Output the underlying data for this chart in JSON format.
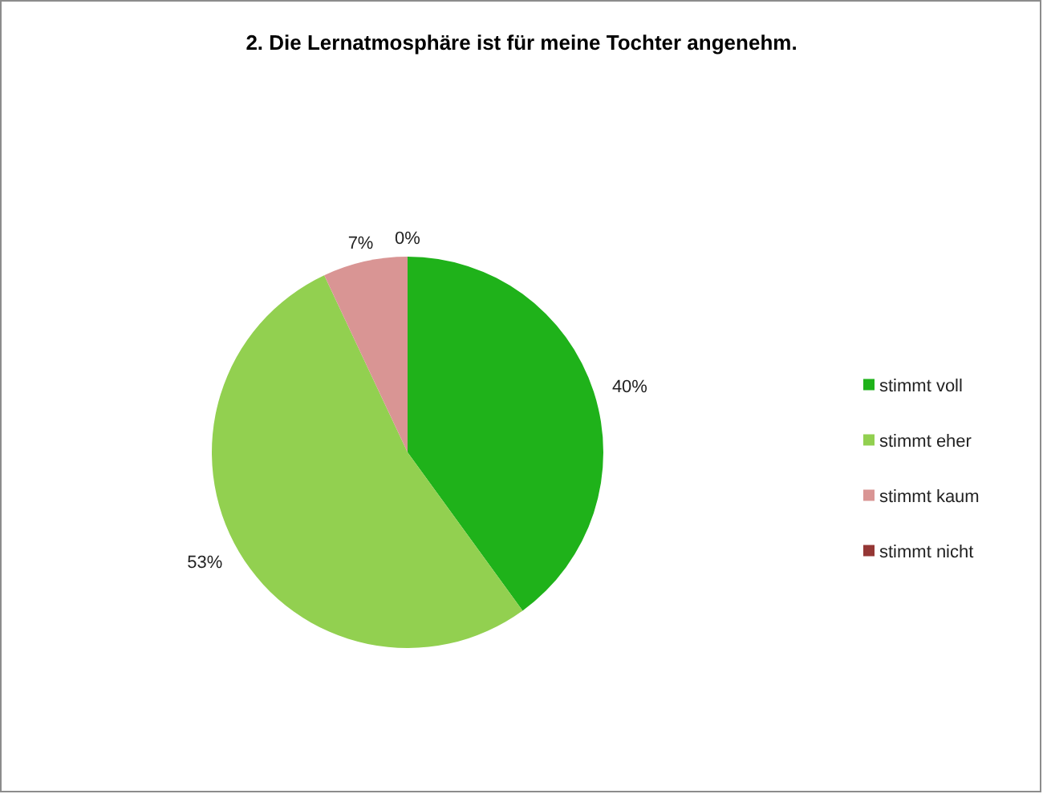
{
  "chart_data": {
    "type": "pie",
    "title": "2. Die Lernatmosphäre ist für meine Tochter angenehm.",
    "categories": [
      "stimmt voll",
      "stimmt eher",
      "stimmt kaum",
      "stimmt nicht"
    ],
    "values": [
      40,
      53,
      7,
      0
    ],
    "value_labels": [
      "40%",
      "53%",
      "7%",
      "0%"
    ],
    "colors": [
      "#1fb21a",
      "#92d050",
      "#d99594",
      "#953735"
    ],
    "legend": "right"
  }
}
